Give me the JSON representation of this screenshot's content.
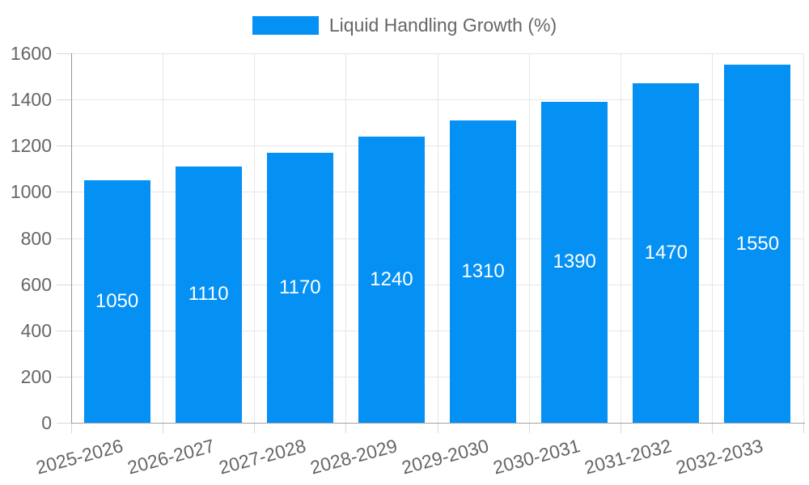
{
  "chart_data": {
    "type": "bar",
    "legend_label": "Liquid Handling Growth (%)",
    "categories": [
      "2025-2026",
      "2026-2027",
      "2027-2028",
      "2028-2029",
      "2029-2030",
      "2030-2031",
      "2031-2032",
      "2032-2033"
    ],
    "values": [
      1050,
      1110,
      1170,
      1240,
      1310,
      1390,
      1470,
      1550
    ],
    "value_labels": [
      "1050",
      "1110",
      "1170",
      "1240",
      "1310",
      "1390",
      "1470",
      "1550"
    ],
    "ylim": [
      0,
      1600
    ],
    "ytick_step": 200,
    "ytick_labels": [
      "0",
      "200",
      "400",
      "600",
      "800",
      "1000",
      "1200",
      "1400",
      "1600"
    ],
    "grid": true,
    "legend_position": "top",
    "value_label_position": "center-inside",
    "colors": {
      "bar": "#0590f4",
      "grid": "#e6e6e6",
      "tick": "#d9d9d9",
      "axis": "#9b9b9b",
      "text": "#666666",
      "value_label": "#ffffff"
    }
  }
}
